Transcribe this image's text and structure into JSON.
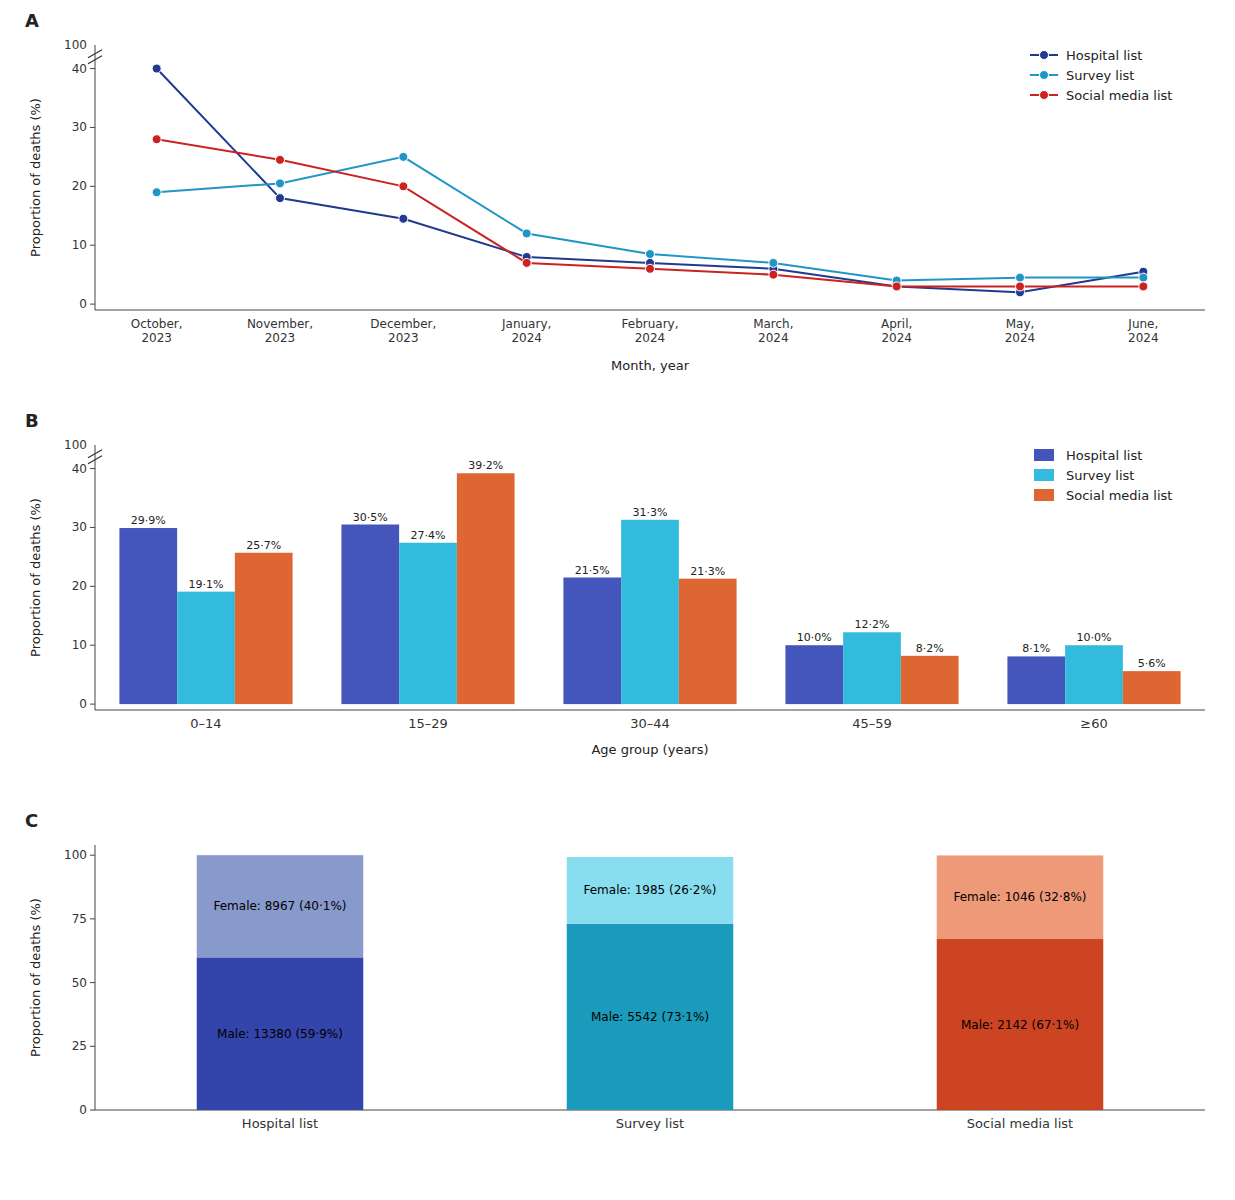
{
  "chart_data": [
    {
      "type": "line",
      "title": "A",
      "xlabel": "Month, year",
      "ylabel": "Proportion of deaths (%)",
      "categories": [
        "October,\n2023",
        "November,\n2023",
        "December,\n2023",
        "January,\n2024",
        "February,\n2024",
        "March,\n2024",
        "April,\n2024",
        "May,\n2024",
        "June,\n2024"
      ],
      "series": [
        {
          "name": "Hospital list",
          "color": "#1f3a8f",
          "marker": "circle",
          "values": [
            40,
            18,
            14.5,
            8,
            7,
            6,
            3,
            2,
            5.5
          ]
        },
        {
          "name": "Survey list",
          "color": "#2196c4",
          "marker": "circle",
          "values": [
            19,
            20.5,
            25,
            12,
            8.5,
            7,
            4,
            4.5,
            4.5
          ]
        },
        {
          "name": "Social media list",
          "color": "#cc2222",
          "marker": "circle",
          "values": [
            28,
            24.5,
            20,
            7,
            6,
            5,
            3,
            3,
            3
          ]
        }
      ],
      "ylim": [
        -1,
        44
      ],
      "yticks": [
        0,
        10,
        20,
        30,
        40
      ],
      "annotations": [
        "100"
      ],
      "grid": false,
      "legend": "upper right"
    },
    {
      "type": "bar",
      "title": "B",
      "xlabel": "Age group (years)",
      "ylabel": "Proportion of deaths (%)",
      "categories": [
        "0–14",
        "15–29",
        "30–44",
        "45–59",
        "≥60"
      ],
      "series": [
        {
          "name": "Hospital list",
          "color": "#4455bb",
          "values": [
            29.9,
            30.5,
            21.5,
            10.0,
            8.1
          ],
          "value_labels": [
            "29·9%",
            "30·5%",
            "21·5%",
            "10·0%",
            "8·1%"
          ]
        },
        {
          "name": "Survey list",
          "color": "#33bbdd",
          "values": [
            19.1,
            27.4,
            31.3,
            12.2,
            10.0
          ],
          "value_labels": [
            "19·1%",
            "27·4%",
            "31·3%",
            "12·2%",
            "10·0%"
          ]
        },
        {
          "name": "Social media list",
          "color": "#dd6633",
          "values": [
            25.7,
            39.2,
            21.3,
            8.2,
            5.6
          ],
          "value_labels": [
            "25·7%",
            "39·2%",
            "21·3%",
            "8·2%",
            "5·6%"
          ]
        }
      ],
      "ylim": [
        -1,
        44
      ],
      "yticks": [
        0,
        10,
        20,
        30,
        40
      ],
      "annotations": [
        "100"
      ],
      "grid": false,
      "legend": "upper right",
      "data_labels": true
    },
    {
      "type": "bar",
      "title": "C",
      "stacked": true,
      "ylabel": "Proportion of deaths (%)",
      "categories": [
        "Hospital list",
        "Survey list",
        "Social media list"
      ],
      "series": [
        {
          "colors": [
            "#3344aa",
            "#1a9bbb",
            "#cc4422"
          ],
          "values": [
            59.9,
            73.1,
            67.1
          ],
          "value_labels": [
            "Male: 13380 (59·9%)",
            "Male: 5542 (73·1%)",
            "Male: 2142 (67·1%)"
          ]
        },
        {
          "colors": [
            "#8899cc",
            "#88ddee",
            "#ee9977"
          ],
          "values": [
            40.1,
            26.2,
            32.8
          ],
          "value_labels": [
            "Female: 8967 (40·1%)",
            "Female: 1985 (26·2%)",
            "Female: 1046 (32·8%)"
          ]
        }
      ],
      "ylim": [
        0,
        104
      ],
      "yticks": [
        0,
        25,
        50,
        75,
        100
      ],
      "grid": false,
      "data_labels": true
    }
  ]
}
